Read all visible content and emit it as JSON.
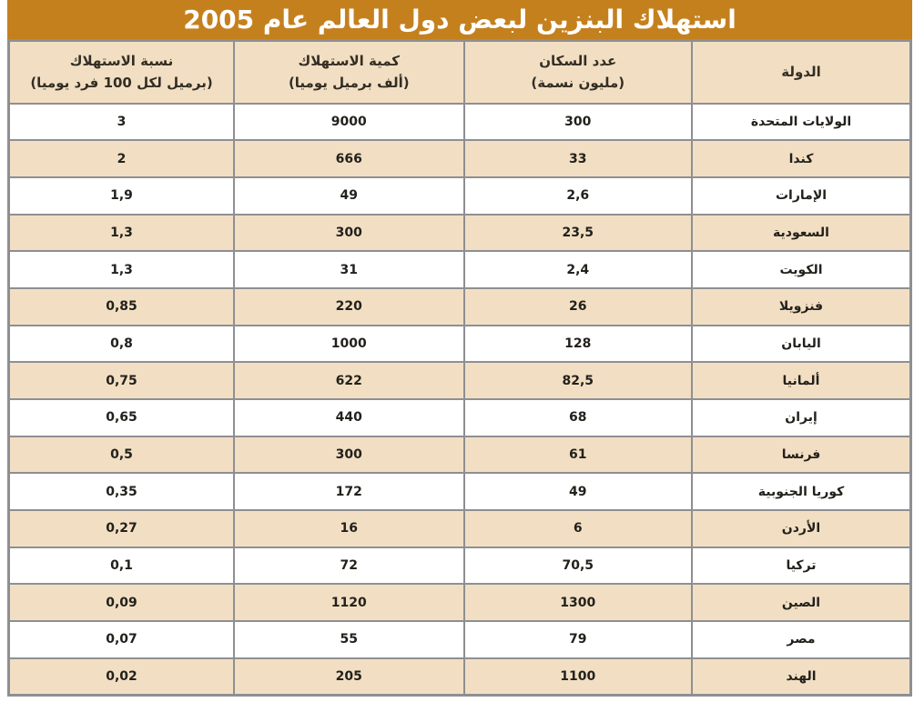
{
  "title": "استهلاك البنزين لبعض دول العالم عام 2005",
  "colors": {
    "title_bg": "#C5801E",
    "title_text": "#FFFFFF",
    "header_bg": "#F2DFC3",
    "alt_row_bg": "#F2DFC3",
    "border": "#8E8F92"
  },
  "table": {
    "headers": [
      {
        "line1": "الدولة",
        "line2": ""
      },
      {
        "line1": "عدد السكان",
        "line2": "(مليون نسمة)"
      },
      {
        "line1": "كمية الاستهلاك",
        "line2": "(ألف برميل يوميا)"
      },
      {
        "line1": "نسبة الاستهلاك",
        "line2": "(برميل لكل 100 فرد يوميا)"
      }
    ],
    "rows": [
      {
        "country": "الولايات المتحدة",
        "population": "300",
        "consumption": "9000",
        "rate": "3"
      },
      {
        "country": "كندا",
        "population": "33",
        "consumption": "666",
        "rate": "2"
      },
      {
        "country": "الإمارات",
        "population": "2,6",
        "consumption": "49",
        "rate": "1,9"
      },
      {
        "country": "السعودية",
        "population": "23,5",
        "consumption": "300",
        "rate": "1,3"
      },
      {
        "country": "الكويت",
        "population": "2,4",
        "consumption": "31",
        "rate": "1,3"
      },
      {
        "country": "فنزويلا",
        "population": "26",
        "consumption": "220",
        "rate": "0,85"
      },
      {
        "country": "اليابان",
        "population": "128",
        "consumption": "1000",
        "rate": "0,8"
      },
      {
        "country": "ألمانيا",
        "population": "82,5",
        "consumption": "622",
        "rate": "0,75"
      },
      {
        "country": "إيران",
        "population": "68",
        "consumption": "440",
        "rate": "0,65"
      },
      {
        "country": "فرنسا",
        "population": "61",
        "consumption": "300",
        "rate": "0,5"
      },
      {
        "country": "كوريا الجنوبية",
        "population": "49",
        "consumption": "172",
        "rate": "0,35"
      },
      {
        "country": "الأردن",
        "population": "6",
        "consumption": "16",
        "rate": "0,27"
      },
      {
        "country": "تركيا",
        "population": "70,5",
        "consumption": "72",
        "rate": "0,1"
      },
      {
        "country": "الصين",
        "population": "1300",
        "consumption": "1120",
        "rate": "0,09"
      },
      {
        "country": "مصر",
        "population": "79",
        "consumption": "55",
        "rate": "0,07"
      },
      {
        "country": "الهند",
        "population": "1100",
        "consumption": "205",
        "rate": "0,02"
      }
    ]
  },
  "chart_data": {
    "type": "table",
    "title": "استهلاك البنزين لبعض دول العالم عام 2005",
    "columns": [
      "الدولة",
      "عدد السكان (مليون نسمة)",
      "كمية الاستهلاك (ألف برميل يوميا)",
      "نسبة الاستهلاك (برميل لكل 100 فرد يوميا)"
    ],
    "rows": [
      [
        "الولايات المتحدة",
        "300",
        "9000",
        "3"
      ],
      [
        "كندا",
        "33",
        "666",
        "2"
      ],
      [
        "الإمارات",
        "2,6",
        "49",
        "1,9"
      ],
      [
        "السعودية",
        "23,5",
        "300",
        "1,3"
      ],
      [
        "الكويت",
        "2,4",
        "31",
        "1,3"
      ],
      [
        "فنزويلا",
        "26",
        "220",
        "0,85"
      ],
      [
        "اليابان",
        "128",
        "1000",
        "0,8"
      ],
      [
        "ألمانيا",
        "82,5",
        "622",
        "0,75"
      ],
      [
        "إيران",
        "68",
        "440",
        "0,65"
      ],
      [
        "فرنسا",
        "61",
        "300",
        "0,5"
      ],
      [
        "كوريا الجنوبية",
        "49",
        "172",
        "0,35"
      ],
      [
        "الأردن",
        "6",
        "16",
        "0,27"
      ],
      [
        "تركيا",
        "70,5",
        "72",
        "0,1"
      ],
      [
        "الصين",
        "1300",
        "1120",
        "0,09"
      ],
      [
        "مصر",
        "79",
        "55",
        "0,07"
      ],
      [
        "الهند",
        "1100",
        "205",
        "0,02"
      ]
    ]
  }
}
